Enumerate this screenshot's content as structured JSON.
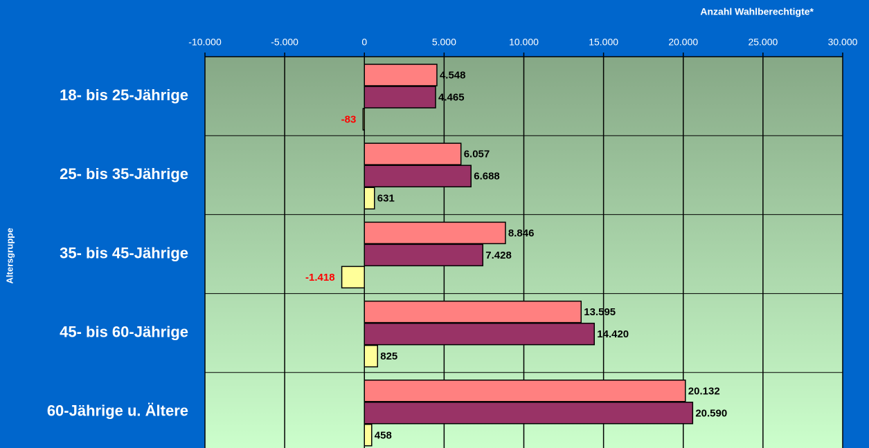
{
  "chart_data": {
    "type": "hbar",
    "x_label": "Anzahl Wahlberechtigte*",
    "y_label": "Altersgruppe",
    "categories": [
      "18- bis 25-Jährige",
      "25- bis 35-Jährige",
      "35- bis 45-Jährige",
      "45- bis 60-Jährige",
      "60-Jährige u. Ältere"
    ],
    "series": [
      {
        "color": "#ff8080",
        "values": [
          4548,
          6057,
          8846,
          13595,
          20132
        ],
        "value_labels": [
          "4.548",
          "6.057",
          "8.846",
          "13.595",
          "20.132"
        ]
      },
      {
        "color": "#993366",
        "values": [
          4465,
          6688,
          7428,
          14420,
          20590
        ],
        "value_labels": [
          "4.465",
          "6.688",
          "7.428",
          "14.420",
          "20.590"
        ]
      },
      {
        "color": "#ffff99",
        "values": [
          -83,
          631,
          -1418,
          825,
          458
        ],
        "value_labels": [
          "-83",
          "631",
          "-1.418",
          "825",
          "458"
        ]
      }
    ],
    "negative_label_color": "#ff0000",
    "xlim": [
      -10000,
      30000
    ],
    "xticks": [
      {
        "value": -10000,
        "label": "-10.000"
      },
      {
        "value": -5000,
        "label": "-5.000"
      },
      0,
      {
        "value": 5000,
        "label": "5.000"
      },
      {
        "value": 10000,
        "label": "10.000"
      },
      {
        "value": 15000,
        "label": "15.000"
      },
      {
        "value": 20000,
        "label": "20.000"
      },
      {
        "value": 25000,
        "label": "25.000"
      },
      {
        "value": 30000,
        "label": "30.000"
      }
    ],
    "grid": true
  }
}
